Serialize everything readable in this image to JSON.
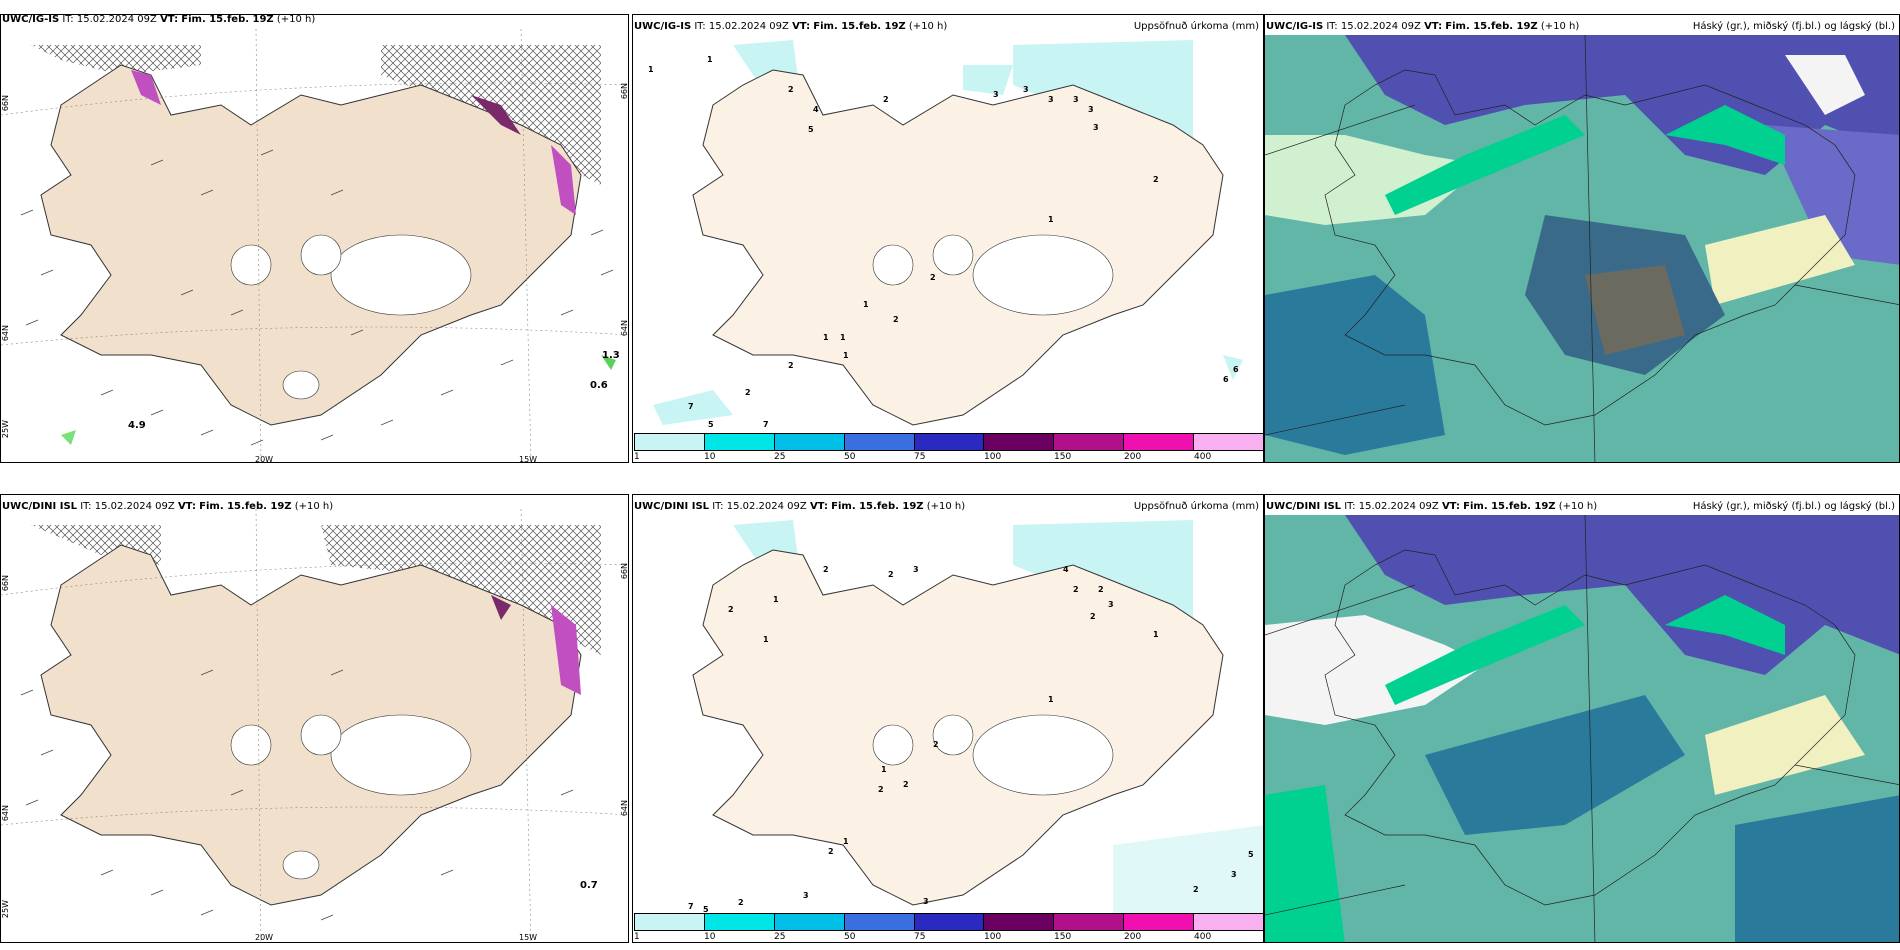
{
  "rows": [
    {
      "panels": [
        {
          "model": "UWC/IG-IS",
          "it": "IT: 15.02.2024 09Z",
          "vt_label": "VT:",
          "vt": "Fim. 15.feb. 19Z",
          "lead": "(+10 h)",
          "right_title": ""
        },
        {
          "model": "UWC/IG-IS",
          "it": "IT: 15.02.2024 09Z",
          "vt_label": "VT:",
          "vt": "Fim. 15.feb. 19Z",
          "lead": "(+10 h)",
          "right_title": "Uppsöfnuð úrkoma (mm)"
        },
        {
          "model": "UWC/IG-IS",
          "it": "IT: 15.02.2024 09Z",
          "vt_label": "VT:",
          "vt": "Fim. 15.feb. 19Z",
          "lead": "(+10 h)",
          "right_title": "Háský (gr.), miðský (fj.bl.) og lágský (bl.)"
        }
      ],
      "wind_values": [
        "1.3",
        "0.6",
        "4.9"
      ]
    },
    {
      "panels": [
        {
          "model": "UWC/DINI ISL",
          "it": "IT: 15.02.2024 09Z",
          "vt_label": "VT:",
          "vt": "Fim. 15.feb. 19Z",
          "lead": "(+10 h)",
          "right_title": ""
        },
        {
          "model": "UWC/DINI ISL",
          "it": "IT: 15.02.2024 09Z",
          "vt_label": "VT:",
          "vt": "Fim. 15.feb. 19Z",
          "lead": "(+10 h)",
          "right_title": "Uppsöfnuð úrkoma (mm)"
        },
        {
          "model": "UWC/DINI ISL",
          "it": "IT: 15.02.2024 09Z",
          "vt_label": "VT:",
          "vt": "Fim. 15.feb. 19Z",
          "lead": "(+10 h)",
          "right_title": "Háský (gr.), miðský (fj.bl.) og lágský (bl.)"
        }
      ],
      "wind_values": [
        "0.7"
      ]
    }
  ],
  "axes": {
    "lon_labels": [
      "20W",
      "15W"
    ],
    "lat_labels": [
      "66N",
      "64N",
      "25W"
    ],
    "lat_right": [
      "66N",
      "64N"
    ]
  },
  "colorbar": {
    "ticks": [
      "1",
      "10",
      "25",
      "50",
      "75",
      "100",
      "150",
      "200",
      "400"
    ],
    "colors": [
      "#c8f4f4",
      "#00e5e5",
      "#00c0e8",
      "#3a6fe0",
      "#2a2ac0",
      "#6a0060",
      "#b0108a",
      "#f010b0",
      "#f8b0f0"
    ]
  },
  "precip_numbers_top": [
    "1",
    "1",
    "2",
    "2",
    "3",
    "3",
    "3",
    "3",
    "3",
    "3",
    "4",
    "5",
    "2",
    "1",
    "2",
    "2",
    "1",
    "1",
    "1",
    "1",
    "2",
    "7",
    "5",
    "2",
    "7",
    "6",
    "6"
  ],
  "precip_numbers_bottom": [
    "1",
    "2",
    "2",
    "2",
    "3",
    "4",
    "2",
    "2",
    "3",
    "2",
    "1",
    "1",
    "1",
    "2",
    "2",
    "2",
    "1",
    "1",
    "2",
    "7",
    "5",
    "2",
    "3",
    "3",
    "5",
    "3",
    "2"
  ],
  "colors": {
    "land": "#f0e0cc",
    "land_precip": "#fbf1e4",
    "sea_cloud": "#62b6a8",
    "high_cloud": "#5050b0",
    "mid_cloud": "#2a7a9c",
    "low_cloud": "#00d090",
    "snow": "#f4f4f4",
    "precip_light": "#c8f4f4"
  }
}
